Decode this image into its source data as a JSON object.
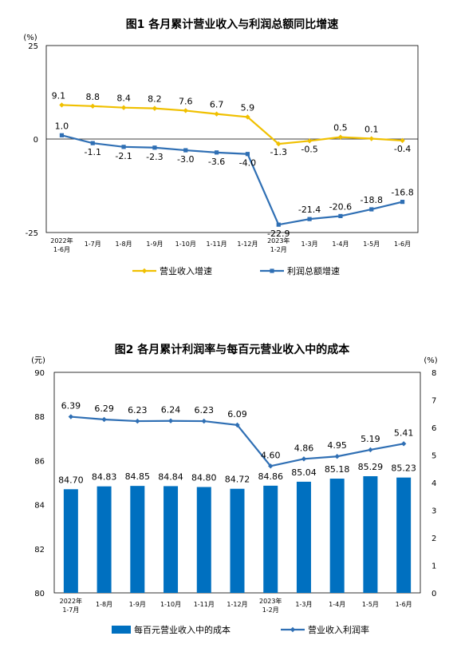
{
  "charts": [
    {
      "title": "图1  各月累计营业收入与利润总额同比增速",
      "unit_left": "(%)"
    },
    {
      "title": "图2  各月累计利润率与每百元营业收入中的成本",
      "unit_left": "(元)",
      "unit_right": "(%)"
    }
  ],
  "chart_data": [
    {
      "type": "line",
      "title": "图1  各月累计营业收入与利润总额同比增速",
      "categories": [
        [
          "2022年",
          "1-6月"
        ],
        [
          "1-7月"
        ],
        [
          "1-8月"
        ],
        [
          "1-9月"
        ],
        [
          "1-10月"
        ],
        [
          "1-11月"
        ],
        [
          "1-12月"
        ],
        [
          "2023年",
          "1-2月"
        ],
        [
          "1-3月"
        ],
        [
          "1-4月"
        ],
        [
          "1-5月"
        ],
        [
          "1-6月"
        ]
      ],
      "y_ticks": [
        "25",
        "0",
        "-25"
      ],
      "ylim": [
        -25,
        25
      ],
      "grid": false,
      "legend_position": "bottom",
      "series": [
        {
          "name": "营业收入增速",
          "color": "#f0c000",
          "values": [
            9.1,
            8.8,
            8.4,
            8.2,
            7.6,
            6.7,
            5.9,
            -1.3,
            -0.5,
            0.5,
            0.1,
            -0.4
          ],
          "labels": [
            "9.1",
            "8.8",
            "8.4",
            "8.2",
            "7.6",
            "6.7",
            "5.9",
            "-1.3",
            "-0.5",
            "0.5",
            "0.1",
            "-0.4"
          ]
        },
        {
          "name": "利润总额增速",
          "color": "#2f6fb4",
          "values": [
            1.0,
            -1.1,
            -2.1,
            -2.3,
            -3.0,
            -3.6,
            -4.0,
            -22.9,
            -21.4,
            -20.6,
            -18.8,
            -16.8
          ],
          "labels": [
            "1.0",
            "-1.1",
            "-2.1",
            "-2.3",
            "-3.0",
            "-3.6",
            "-4.0",
            "-22.9",
            "-21.4",
            "-20.6",
            "-18.8",
            "-16.8"
          ]
        }
      ]
    },
    {
      "type": "bar",
      "title": "图2  各月累计利润率与每百元营业收入中的成本",
      "categories": [
        [
          "2022年",
          "1-7月"
        ],
        [
          "1-8月"
        ],
        [
          "1-9月"
        ],
        [
          "1-10月"
        ],
        [
          "1-11月"
        ],
        [
          "1-12月"
        ],
        [
          "2023年",
          "1-2月"
        ],
        [
          "1-3月"
        ],
        [
          "1-4月"
        ],
        [
          "1-5月"
        ],
        [
          "1-6月"
        ]
      ],
      "y_ticks_left": [
        "90",
        "88",
        "86",
        "84",
        "82",
        "80"
      ],
      "y_ticks_right": [
        "8",
        "7",
        "6",
        "5",
        "4",
        "3",
        "2",
        "1",
        "0"
      ],
      "ylim_left": [
        80,
        90
      ],
      "ylim_right": [
        0,
        8
      ],
      "grid": false,
      "legend_position": "bottom",
      "series": [
        {
          "name": "每百元营业收入中的成本",
          "type": "bar",
          "axis": "left",
          "color": "#0070c0",
          "values": [
            84.7,
            84.83,
            84.85,
            84.84,
            84.8,
            84.72,
            84.86,
            85.04,
            85.18,
            85.29,
            85.23
          ],
          "labels": [
            "84.70",
            "84.83",
            "84.85",
            "84.84",
            "84.80",
            "84.72",
            "84.86",
            "85.04",
            "85.18",
            "85.29",
            "85.23"
          ]
        },
        {
          "name": "营业收入利润率",
          "type": "line",
          "axis": "right",
          "color": "#2f6fb4",
          "values": [
            6.39,
            6.29,
            6.23,
            6.24,
            6.23,
            6.09,
            4.6,
            4.86,
            4.95,
            5.19,
            5.41
          ],
          "labels": [
            "6.39",
            "6.29",
            "6.23",
            "6.24",
            "6.23",
            "6.09",
            "4.60",
            "4.86",
            "4.95",
            "5.19",
            "5.41"
          ]
        }
      ]
    }
  ]
}
